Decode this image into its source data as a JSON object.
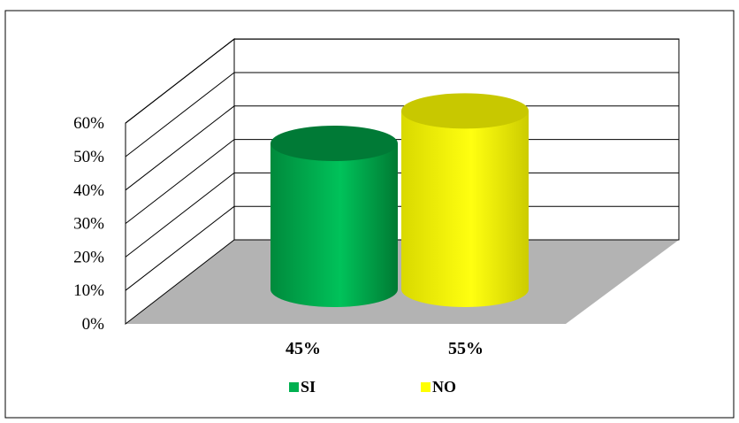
{
  "chart_data": {
    "type": "bar",
    "style": "3d-cylinder",
    "categories": [
      "SI",
      "NO"
    ],
    "values": [
      45,
      55
    ],
    "data_labels": [
      "45%",
      "55%"
    ],
    "series": [
      {
        "name": "SI",
        "value": 45,
        "color": "#00b050"
      },
      {
        "name": "NO",
        "value": 55,
        "color": "#ffff00"
      }
    ],
    "title": "",
    "xlabel": "",
    "ylabel": "",
    "ylim": [
      0,
      60
    ],
    "y_ticks": [
      "0%",
      "10%",
      "20%",
      "30%",
      "40%",
      "50%",
      "60%"
    ],
    "grid": true,
    "legend_position": "bottom",
    "floor_color": "#b3b3b3",
    "background_color": "#ffffff"
  }
}
